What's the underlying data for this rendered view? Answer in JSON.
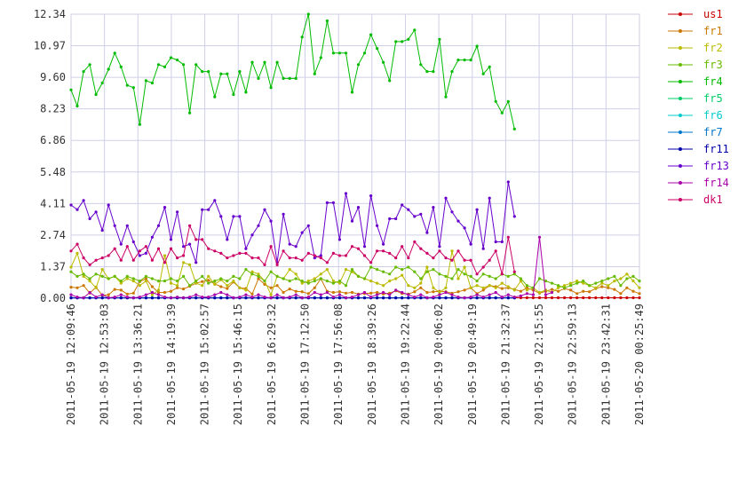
{
  "chart_data": {
    "type": "line",
    "title": "",
    "xlabel": "",
    "ylabel": "",
    "ylim": [
      0,
      12.34
    ],
    "y_ticks": [
      "0.00",
      "1.37",
      "2.74",
      "4.11",
      "5.48",
      "6.86",
      "8.23",
      "9.60",
      "10.97",
      "12.34"
    ],
    "x_tick_labels": [
      "2011-05-19 12:09:46",
      "2011-05-19 12:53:03",
      "2011-05-19 13:36:21",
      "2011-05-19 14:19:39",
      "2011-05-19 15:02:57",
      "2011-05-19 15:46:15",
      "2011-05-19 16:29:32",
      "2011-05-19 17:12:50",
      "2011-05-19 17:56:08",
      "2011-05-19 18:39:26",
      "2011-05-19 19:22:44",
      "2011-05-19 20:06:02",
      "2011-05-19 20:49:19",
      "2011-05-19 21:32:37",
      "2011-05-19 22:15:55",
      "2011-05-19 22:59:13",
      "2011-05-19 23:42:31",
      "2011-05-20 00:25:49"
    ],
    "grid": true,
    "legend_position": "right",
    "series": [
      {
        "name": "us1",
        "color": "#cc0000",
        "values": [
          0.02,
          0.02,
          0.02,
          0.02,
          0.02,
          0.02,
          0.02,
          0.02,
          0.02,
          0.02,
          0.02,
          0.02,
          0.02,
          0.02,
          0.02,
          0.02,
          0.02,
          0.02,
          0.02,
          0.02,
          0.02,
          0.02,
          0.02,
          0.02,
          0.02,
          0.02,
          0.02,
          0.02,
          0.02,
          0.02,
          0.02,
          0.02,
          0.02,
          0.02,
          0.02,
          0.02,
          0.02,
          0.02,
          0.02,
          0.02,
          0.02,
          0.02,
          0.02,
          0.02,
          0.02,
          0.02,
          0.02,
          0.02,
          0.02,
          0.02,
          0.02,
          0.02,
          0.02,
          0.02,
          0.02,
          0.02,
          0.02,
          0.02,
          0.02,
          0.02,
          0.02,
          0.02,
          0.02,
          0.02,
          0.02,
          0.02,
          0.02,
          0.02,
          0.02,
          0.02,
          0.02,
          0.02,
          0.02,
          0.02,
          0.02,
          0.02,
          0.02,
          0.02,
          0.02,
          0.02,
          0.02,
          0.02,
          0.02,
          0.02,
          0.02,
          0.02,
          0.02,
          0.02,
          0.02,
          0.02,
          0.02,
          0.02
        ]
      },
      {
        "name": "fr1",
        "color": "#cc7700",
        "values": [
          0.48,
          0.45,
          0.55,
          0.22,
          0.48,
          0.12,
          0.15,
          0.38,
          0.35,
          0.18,
          0.22,
          0.72,
          0.85,
          0.5,
          0.25,
          0.25,
          0.3,
          0.45,
          0.4,
          0.52,
          0.65,
          0.72,
          0.78,
          0.62,
          0.5,
          0.42,
          0.7,
          0.45,
          0.42,
          0.18,
          0.85,
          0.6,
          0.45,
          0.55,
          0.25,
          0.4,
          0.3,
          0.28,
          0.2,
          0.45,
          0.85,
          0.3,
          0.25,
          0.28,
          0.22,
          0.25,
          0.18,
          0.2,
          0.22,
          0.25,
          0.18,
          0.22,
          0.32,
          0.2,
          0.18,
          0.28,
          0.45,
          0.25,
          0.28,
          0.3,
          0.28,
          0.22,
          0.28,
          0.35,
          0.45,
          0.2,
          0.35,
          0.55,
          0.5,
          0.42,
          0.45,
          0.38,
          0.3,
          0.45,
          0.35,
          0.22,
          0.3,
          0.38,
          0.3,
          0.42,
          0.35,
          0.2,
          0.3,
          0.28,
          0.42,
          0.5,
          0.45,
          0.38,
          0.2,
          0.45,
          0.3,
          0.2
        ]
      },
      {
        "name": "fr2",
        "color": "#bbbb00",
        "values": [
          1.35,
          1.95,
          0.95,
          0.75,
          0.45,
          1.25,
          0.85,
          0.95,
          0.65,
          0.85,
          0.75,
          0.55,
          0.75,
          0.15,
          0.35,
          1.85,
          0.65,
          0.55,
          1.55,
          1.45,
          0.65,
          0.55,
          0.95,
          0.6,
          0.8,
          0.55,
          0.75,
          0.45,
          0.35,
          1.15,
          1.05,
          0.75,
          0.15,
          0.95,
          0.85,
          1.25,
          1.05,
          0.65,
          0.75,
          0.85,
          1.05,
          1.25,
          0.75,
          0.65,
          1.25,
          1.15,
          0.95,
          0.85,
          0.75,
          0.65,
          0.55,
          0.75,
          0.85,
          1.0,
          0.55,
          0.45,
          0.65,
          1.35,
          0.45,
          0.25,
          0.45,
          2.05,
          0.85,
          1.35,
          0.45,
          0.55,
          0.45,
          0.55,
          0.45,
          0.65,
          0.5,
          0.35,
          0.75,
          0.35,
          0.45,
          0.25,
          0.35,
          0.25,
          0.45,
          0.55,
          0.65,
          0.75,
          0.65,
          0.55,
          0.45,
          0.65,
          0.55,
          0.75,
          0.85,
          1.05,
          0.75,
          0.45
        ]
      },
      {
        "name": "fr3",
        "color": "#66bb00",
        "values": [
          1.15,
          0.95,
          1.05,
          0.85,
          1.05,
          0.95,
          0.85,
          0.95,
          0.75,
          0.95,
          0.85,
          0.75,
          0.95,
          0.85,
          0.75,
          0.75,
          0.85,
          0.75,
          0.95,
          0.55,
          0.75,
          0.95,
          0.65,
          0.75,
          0.85,
          0.75,
          0.95,
          0.85,
          1.25,
          1.05,
          0.95,
          0.75,
          1.15,
          0.95,
          0.85,
          0.75,
          0.85,
          0.75,
          0.65,
          0.75,
          0.85,
          0.75,
          0.65,
          0.75,
          0.55,
          1.25,
          0.95,
          0.85,
          1.35,
          1.25,
          1.15,
          1.05,
          1.35,
          1.25,
          1.35,
          1.15,
          0.85,
          1.15,
          1.25,
          1.05,
          0.95,
          0.85,
          1.25,
          1.05,
          0.95,
          0.75,
          1.05,
          0.95,
          0.85,
          1.05,
          0.95,
          1.05,
          0.85,
          0.55,
          0.45,
          0.85,
          0.75,
          0.65,
          0.55,
          0.45,
          0.55,
          0.65,
          0.75,
          0.55,
          0.65,
          0.75,
          0.85,
          0.95,
          0.55,
          0.85,
          0.95,
          0.75
        ]
      },
      {
        "name": "fr4",
        "color": "#00bb00",
        "values": [
          9.05,
          8.35,
          9.85,
          10.15,
          8.85,
          9.35,
          9.95,
          10.65,
          10.05,
          9.25,
          9.15,
          7.55,
          9.45,
          9.35,
          10.15,
          10.05,
          10.45,
          10.35,
          10.15,
          8.05,
          10.15,
          9.85,
          9.85,
          8.75,
          9.75,
          9.75,
          8.85,
          9.85,
          8.95,
          10.25,
          9.55,
          10.25,
          9.15,
          10.25,
          9.55,
          9.55,
          9.55,
          11.35,
          12.34,
          9.75,
          10.45,
          12.05,
          10.65,
          10.65,
          10.65,
          8.95,
          10.15,
          10.65,
          11.45,
          10.85,
          10.25,
          9.45,
          11.15,
          11.15,
          11.25,
          11.65,
          10.15,
          9.85,
          9.85,
          11.25,
          8.75,
          9.85,
          10.35,
          10.35,
          10.35,
          10.95,
          9.75,
          10.05,
          8.55,
          8.05,
          8.55,
          7.35,
          null,
          null,
          null,
          null,
          null,
          null,
          null,
          null,
          null,
          null,
          null,
          null,
          null,
          null,
          null,
          null,
          null,
          null,
          null,
          null
        ]
      },
      {
        "name": "fr5",
        "color": "#00cc66",
        "values": [
          0.02,
          0.02,
          0.02,
          0.02,
          0.02,
          0.02,
          0.02,
          0.02,
          0.02,
          0.02,
          0.02,
          0.02,
          0.02,
          0.02,
          0.02,
          0.02,
          0.02,
          0.02,
          0.02,
          0.02,
          0.02,
          0.02,
          0.02,
          0.02,
          0.02,
          0.02,
          0.02,
          0.02,
          0.02,
          0.02,
          0.02,
          0.02,
          0.02,
          0.02,
          0.02,
          0.02,
          0.02,
          0.02,
          0.02,
          0.02,
          0.02,
          0.02,
          0.02,
          0.02,
          0.02,
          0.02,
          0.02,
          0.02,
          0.02,
          0.02,
          0.02,
          0.02,
          0.02,
          0.02,
          0.02,
          0.02,
          0.02,
          0.02,
          0.02,
          0.02,
          0.02,
          0.02,
          0.02,
          0.02,
          0.02,
          0.02,
          0.02,
          0.02,
          0.02,
          0.02,
          0.02,
          0.02
        ]
      },
      {
        "name": "fr6",
        "color": "#00cccc",
        "values": [
          0.02,
          0.02,
          0.02,
          0.02,
          0.02,
          0.02,
          0.02,
          0.02,
          0.02,
          0.02,
          0.02,
          0.02,
          0.02,
          0.02,
          0.02,
          0.02,
          0.02,
          0.02,
          0.02,
          0.02,
          0.02,
          0.02,
          0.02,
          0.02,
          0.02,
          0.02,
          0.02,
          0.02,
          0.02,
          0.02,
          0.02,
          0.02,
          0.02,
          0.02,
          0.02,
          0.02,
          0.02,
          0.02,
          0.02,
          0.02,
          0.02,
          0.02,
          0.02,
          0.02,
          0.02,
          0.02,
          0.02,
          0.02,
          0.02,
          0.02,
          0.02,
          0.02,
          0.02,
          0.02,
          0.02,
          0.02,
          0.02,
          0.02,
          0.02,
          0.02,
          0.02,
          0.02,
          0.02,
          0.02,
          0.02,
          0.02,
          0.02,
          0.02,
          0.02,
          0.02,
          0.02,
          0.02
        ]
      },
      {
        "name": "fr7",
        "color": "#0077cc",
        "values": [
          0.02,
          0.02,
          0.02,
          0.02,
          0.02,
          0.02,
          0.02,
          0.02,
          0.02,
          0.02,
          0.02,
          0.02,
          0.02,
          0.02,
          0.02,
          0.02,
          0.02,
          0.02,
          0.02,
          0.02,
          0.02,
          0.02,
          0.02,
          0.02,
          0.02,
          0.02,
          0.02,
          0.02,
          0.02,
          0.02,
          0.02,
          0.02,
          0.02,
          0.02,
          0.02,
          0.02,
          0.02,
          0.02,
          0.02,
          0.02,
          0.02,
          0.02,
          0.02,
          0.02,
          0.02,
          0.02,
          0.02,
          0.02,
          0.02,
          0.02,
          0.02,
          0.02,
          0.02,
          0.02,
          0.02,
          0.02,
          0.02,
          0.02,
          0.02,
          0.02,
          0.02,
          0.02,
          0.02,
          0.02,
          0.02,
          0.02,
          0.02,
          0.02,
          0.02,
          0.02,
          0.02,
          0.02
        ]
      },
      {
        "name": "fr11",
        "color": "#0000aa",
        "values": [
          0.01,
          0.01,
          0.01,
          0.01,
          0.01,
          0.01,
          0.01,
          0.01,
          0.01,
          0.01,
          0.01,
          0.01,
          0.01,
          0.01,
          0.01,
          0.01,
          0.01,
          0.01,
          0.01,
          0.01,
          0.01,
          0.01,
          0.01,
          0.01,
          0.01,
          0.01,
          0.01,
          0.01,
          0.01,
          0.01,
          0.01,
          0.01,
          0.01,
          0.01,
          0.01,
          0.01,
          0.01,
          0.01,
          0.01,
          0.01,
          0.01,
          0.01,
          0.01,
          0.01,
          0.01,
          0.01,
          0.01,
          0.01,
          0.01,
          0.01,
          0.01,
          0.01,
          0.01,
          0.01,
          0.01,
          0.01,
          0.01,
          0.01,
          0.01,
          0.01,
          0.01,
          0.01,
          0.01,
          0.01,
          0.01,
          0.01,
          0.01,
          0.01,
          0.01,
          0.01,
          0.01,
          0.01
        ]
      },
      {
        "name": "fr13",
        "color": "#6600cc",
        "values": [
          4.05,
          3.85,
          4.25,
          3.45,
          3.75,
          2.95,
          4.05,
          3.15,
          2.35,
          3.15,
          2.45,
          1.85,
          1.95,
          2.65,
          3.15,
          3.95,
          2.55,
          3.75,
          2.25,
          2.35,
          1.55,
          3.85,
          3.85,
          4.25,
          3.55,
          2.55,
          3.55,
          3.55,
          2.15,
          2.75,
          3.15,
          3.85,
          3.35,
          1.55,
          3.65,
          2.35,
          2.25,
          2.85,
          3.15,
          1.75,
          1.85,
          4.15,
          4.15,
          2.55,
          4.55,
          3.35,
          3.95,
          2.25,
          4.45,
          3.15,
          2.35,
          3.45,
          3.45,
          4.05,
          3.85,
          3.55,
          3.65,
          2.85,
          3.95,
          2.25,
          4.35,
          3.75,
          3.35,
          3.05,
          2.35,
          3.85,
          2.15,
          4.35,
          2.45,
          2.45,
          5.05,
          3.55
        ]
      },
      {
        "name": "fr14",
        "color": "#aa00aa",
        "values": [
          0.15,
          0.05,
          0.02,
          0.25,
          0.05,
          0.15,
          0.02,
          0.05,
          0.15,
          0.05,
          0.02,
          0.05,
          0.15,
          0.25,
          0.15,
          0.05,
          0.02,
          0.05,
          0.02,
          0.05,
          0.15,
          0.05,
          0.05,
          0.15,
          0.25,
          0.15,
          0.02,
          0.05,
          0.15,
          0.05,
          0.15,
          0.05,
          0.02,
          0.15,
          0.02,
          0.05,
          0.15,
          0.02,
          0.05,
          0.25,
          0.15,
          0.25,
          0.05,
          0.15,
          0.02,
          0.05,
          0.15,
          0.25,
          0.05,
          0.15,
          0.25,
          0.15,
          0.35,
          0.25,
          0.15,
          0.05,
          0.15,
          0.02,
          0.05,
          0.15,
          0.25,
          0.15,
          0.05,
          0.02,
          0.05,
          0.15,
          0.05,
          0.15,
          0.25,
          0.05,
          0.15,
          0.05,
          0.1,
          0.2,
          0.15,
          2.65,
          0.15,
          0.25
        ]
      },
      {
        "name": "dk1",
        "color": "#cc0066",
        "values": [
          2.05,
          2.35,
          1.75,
          1.45,
          1.65,
          1.75,
          1.85,
          2.15,
          1.65,
          2.25,
          1.65,
          2.05,
          2.25,
          1.65,
          2.15,
          1.55,
          2.15,
          1.75,
          1.85,
          3.15,
          2.55,
          2.55,
          2.15,
          2.05,
          1.95,
          1.75,
          1.85,
          1.95,
          1.95,
          1.75,
          1.75,
          1.45,
          2.25,
          1.45,
          2.05,
          1.75,
          1.75,
          1.65,
          1.95,
          1.85,
          1.75,
          1.55,
          1.95,
          1.85,
          1.85,
          2.25,
          2.15,
          1.85,
          1.55,
          2.05,
          2.05,
          1.95,
          1.75,
          2.25,
          1.75,
          2.45,
          2.15,
          1.95,
          1.75,
          2.05,
          1.75,
          1.65,
          2.05,
          1.65,
          1.65,
          1.05,
          1.35,
          1.65,
          2.05,
          1.05,
          2.65,
          1.15
        ]
      }
    ]
  }
}
